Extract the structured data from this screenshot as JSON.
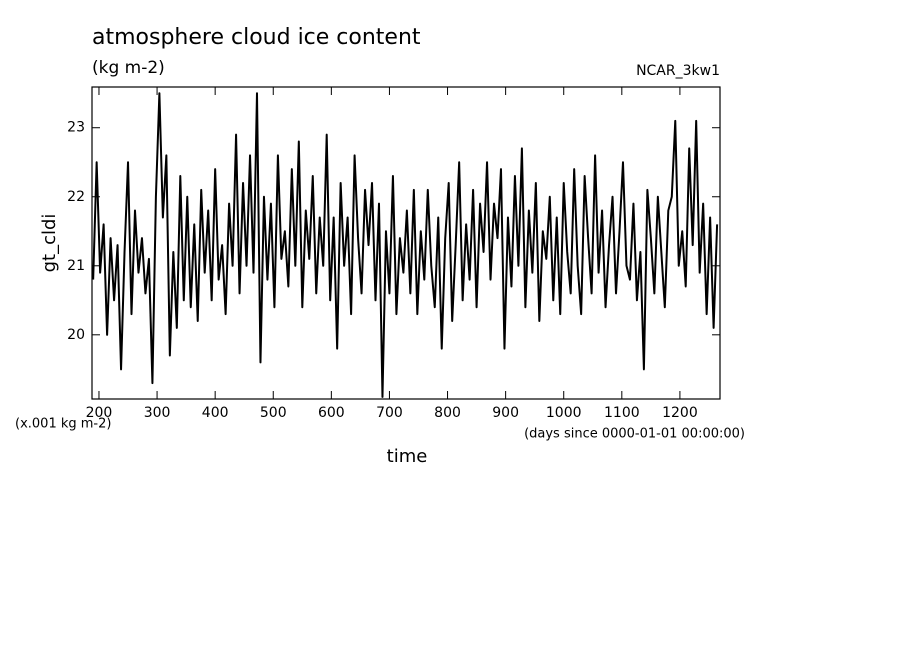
{
  "chart_data": {
    "type": "line",
    "title": "atmosphere cloud ice content",
    "subtitle": "(kg m-2)",
    "annotation": "NCAR_3kw1",
    "y_label": "gt_cldi",
    "y_unit": "(x.001 kg m-2)",
    "x_label": "time",
    "x_unit": "(days since 0000-01-01 00:00:00)",
    "color": "#000000",
    "xlim": [
      188,
      1269
    ],
    "ylim": [
      19.07,
      23.59
    ],
    "xticks": [
      200,
      300,
      400,
      500,
      600,
      700,
      800,
      900,
      1000,
      1100,
      1200
    ],
    "yticks": [
      20,
      21,
      22,
      23
    ],
    "x": [
      190,
      196,
      202,
      208,
      214,
      220,
      226,
      232,
      238,
      244,
      250,
      256,
      262,
      268,
      274,
      280,
      286,
      292,
      298,
      304,
      310,
      316,
      322,
      328,
      334,
      340,
      346,
      352,
      358,
      364,
      370,
      376,
      382,
      388,
      394,
      400,
      406,
      412,
      418,
      424,
      430,
      436,
      442,
      448,
      454,
      460,
      466,
      472,
      478,
      484,
      490,
      496,
      502,
      508,
      514,
      520,
      526,
      532,
      538,
      544,
      550,
      556,
      562,
      568,
      574,
      580,
      586,
      592,
      598,
      604,
      610,
      616,
      622,
      628,
      634,
      640,
      646,
      652,
      658,
      664,
      670,
      676,
      682,
      688,
      694,
      700,
      706,
      712,
      718,
      724,
      730,
      736,
      742,
      748,
      754,
      760,
      766,
      772,
      778,
      784,
      790,
      796,
      802,
      808,
      814,
      820,
      826,
      832,
      838,
      844,
      850,
      856,
      862,
      868,
      874,
      880,
      886,
      892,
      898,
      904,
      910,
      916,
      922,
      928,
      934,
      940,
      946,
      952,
      958,
      964,
      970,
      976,
      982,
      988,
      994,
      1000,
      1006,
      1012,
      1018,
      1024,
      1030,
      1036,
      1042,
      1048,
      1054,
      1060,
      1066,
      1072,
      1078,
      1084,
      1090,
      1096,
      1102,
      1108,
      1114,
      1120,
      1126,
      1132,
      1138,
      1144,
      1150,
      1156,
      1162,
      1168,
      1174,
      1180,
      1186,
      1192,
      1198,
      1204,
      1210,
      1216,
      1222,
      1228,
      1234,
      1240,
      1246,
      1252,
      1258,
      1264
    ],
    "values": [
      20.8,
      22.5,
      20.9,
      21.6,
      20.0,
      21.4,
      20.5,
      21.3,
      19.5,
      21.2,
      22.5,
      20.3,
      21.8,
      20.9,
      21.4,
      20.6,
      21.1,
      19.3,
      22.0,
      23.5,
      21.7,
      22.6,
      19.7,
      21.2,
      20.1,
      22.3,
      20.5,
      22.0,
      20.4,
      21.6,
      20.2,
      22.1,
      20.9,
      21.8,
      20.5,
      22.4,
      20.8,
      21.3,
      20.3,
      21.9,
      21.0,
      22.9,
      20.6,
      22.2,
      21.0,
      22.6,
      20.9,
      23.5,
      19.6,
      22.0,
      20.8,
      21.9,
      20.4,
      22.6,
      21.1,
      21.5,
      20.7,
      22.4,
      21.0,
      22.8,
      20.4,
      21.8,
      21.1,
      22.3,
      20.6,
      21.7,
      21.0,
      22.9,
      20.5,
      21.7,
      19.8,
      22.2,
      21.0,
      21.7,
      20.3,
      22.6,
      21.4,
      20.6,
      22.1,
      21.3,
      22.2,
      20.5,
      21.9,
      19.1,
      21.5,
      20.6,
      22.3,
      20.3,
      21.4,
      20.9,
      21.8,
      20.6,
      22.1,
      20.3,
      21.5,
      20.8,
      22.1,
      21.0,
      20.4,
      21.7,
      19.8,
      21.4,
      22.2,
      20.2,
      21.3,
      22.5,
      20.5,
      21.6,
      20.8,
      22.1,
      20.4,
      21.9,
      21.2,
      22.5,
      20.8,
      21.9,
      21.4,
      22.4,
      19.8,
      21.7,
      20.7,
      22.3,
      21.0,
      22.7,
      20.4,
      21.8,
      20.9,
      22.2,
      20.2,
      21.5,
      21.1,
      22.0,
      20.5,
      21.7,
      20.3,
      22.2,
      21.2,
      20.6,
      22.4,
      21.0,
      20.3,
      22.3,
      21.4,
      20.6,
      22.6,
      20.9,
      21.8,
      20.4,
      21.3,
      22.0,
      20.6,
      21.5,
      22.5,
      21.0,
      20.8,
      21.9,
      20.5,
      21.2,
      19.5,
      22.1,
      21.4,
      20.6,
      22.0,
      21.2,
      20.4,
      21.8,
      22.0,
      23.1,
      21.0,
      21.5,
      20.7,
      22.7,
      21.3,
      23.1,
      20.9,
      21.9,
      20.3,
      21.7,
      20.1,
      21.6
    ]
  }
}
